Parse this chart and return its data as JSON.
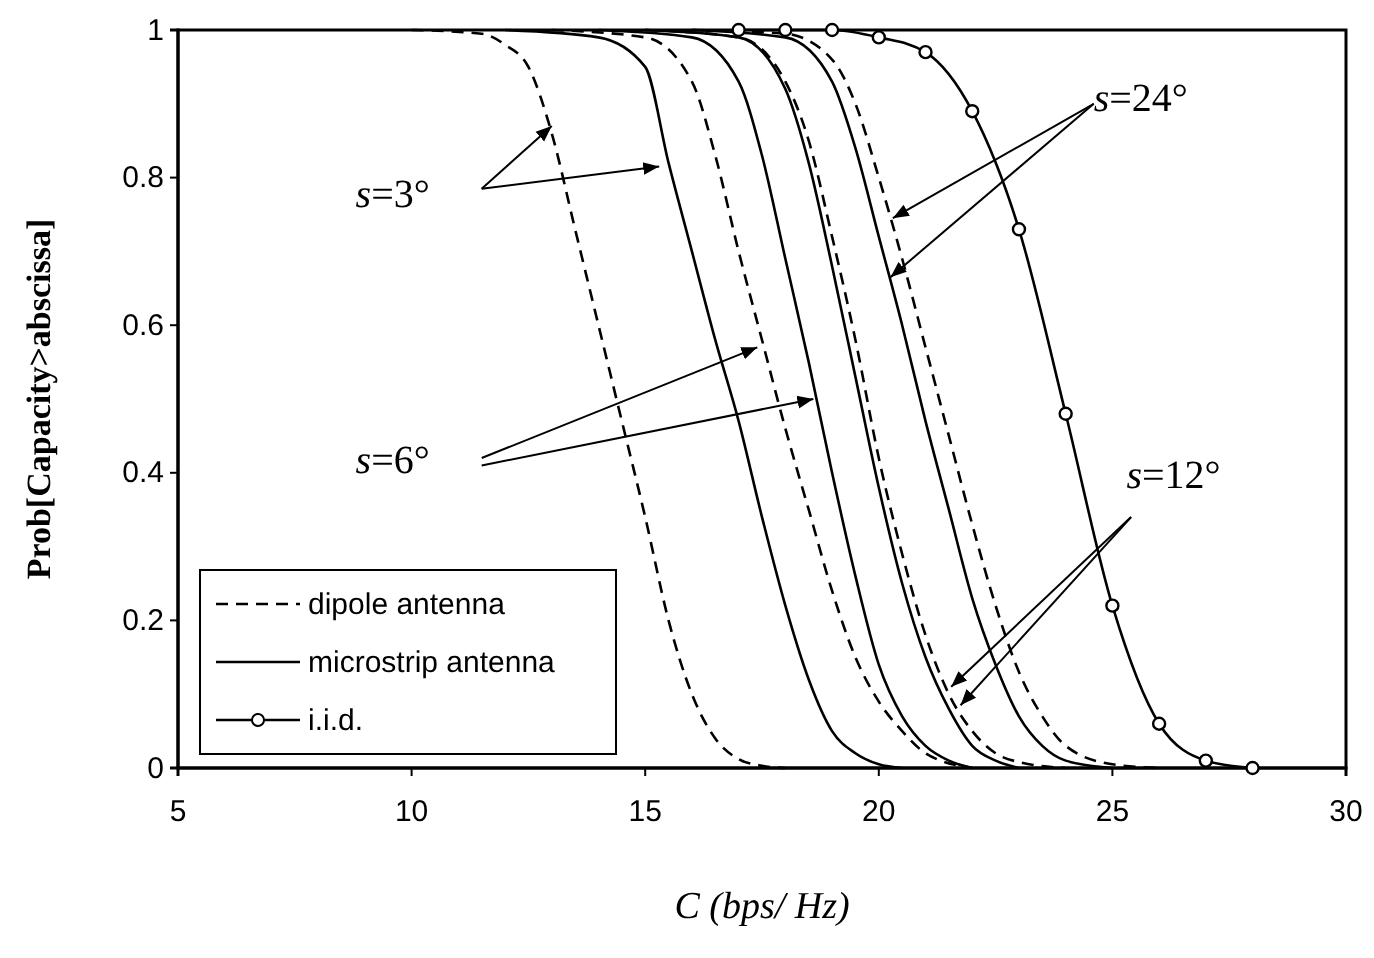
{
  "chart_data": {
    "type": "line",
    "xlabel": "C (bps/ Hz)",
    "ylabel": "Prob[Capacity>abscissa]",
    "xlim": [
      5,
      30
    ],
    "xticks": [
      5,
      10,
      15,
      20,
      25,
      30
    ],
    "ylim": [
      0,
      1
    ],
    "yticks": [
      0,
      {
        "value": 0.2,
        "label": "0.2"
      },
      {
        "value": 0.4,
        "label": "0.4"
      },
      {
        "value": 0.6,
        "label": "0.6"
      },
      {
        "value": 0.8,
        "label": "0.8"
      },
      1
    ],
    "grid": false,
    "legend": "bottom left",
    "marker": "none",
    "series": [
      {
        "name": "dipole antenna",
        "color": "#000000",
        "line_style": "dashed",
        "x": [
          10,
          11.5,
          12,
          12.5,
          13,
          13.5,
          14,
          14.5,
          15,
          15.5,
          16,
          16.5,
          17,
          17.5,
          18
        ],
        "values": [
          1,
          0.995,
          0.98,
          0.95,
          0.86,
          0.73,
          0.6,
          0.47,
          0.34,
          0.2,
          0.1,
          0.04,
          0.012,
          0.003,
          0
        ]
      },
      {
        "name": "microstrip antenna",
        "color": "#000000",
        "line_style": "solid",
        "x": [
          12,
          14,
          15,
          15.5,
          16,
          16.5,
          17,
          17.5,
          18,
          18.5,
          19,
          19.5,
          20,
          20.5
        ],
        "values": [
          1,
          0.99,
          0.95,
          0.82,
          0.7,
          0.58,
          0.47,
          0.34,
          0.22,
          0.12,
          0.05,
          0.02,
          0.005,
          0
        ]
      },
      {
        "color": "#000000",
        "line_style": "dashed",
        "x": [
          13,
          15,
          16,
          16.5,
          17,
          17.5,
          18,
          18.5,
          19,
          19.5,
          20,
          20.5,
          21,
          22
        ],
        "values": [
          1,
          0.99,
          0.93,
          0.83,
          0.7,
          0.58,
          0.46,
          0.35,
          0.24,
          0.15,
          0.09,
          0.05,
          0.02,
          0
        ]
      },
      {
        "color": "#000000",
        "line_style": "solid",
        "x": [
          14,
          16,
          17,
          17.5,
          18,
          18.5,
          19,
          19.5,
          20,
          20.5,
          21,
          21.5,
          22
        ],
        "values": [
          1,
          0.99,
          0.93,
          0.83,
          0.69,
          0.55,
          0.4,
          0.26,
          0.14,
          0.07,
          0.03,
          0.01,
          0
        ]
      },
      {
        "color": "#000000",
        "line_style": "solid",
        "x": [
          15,
          17,
          18,
          18.5,
          19,
          19.5,
          20,
          20.5,
          21,
          21.5,
          22,
          22.5,
          23
        ],
        "values": [
          1,
          0.99,
          0.92,
          0.82,
          0.68,
          0.53,
          0.38,
          0.25,
          0.15,
          0.08,
          0.03,
          0.01,
          0
        ]
      },
      {
        "color": "#000000",
        "line_style": "dashed",
        "x": [
          15,
          17,
          18,
          18.5,
          19,
          19.5,
          20,
          20.5,
          21,
          21.5,
          22,
          22.5,
          23,
          24
        ],
        "values": [
          1,
          0.99,
          0.93,
          0.85,
          0.72,
          0.58,
          0.42,
          0.29,
          0.18,
          0.1,
          0.05,
          0.02,
          0.008,
          0
        ]
      },
      {
        "color": "#000000",
        "line_style": "solid",
        "x": [
          16,
          18,
          19,
          19.5,
          20,
          20.5,
          21,
          21.5,
          22,
          22.5,
          23,
          23.5,
          24,
          25
        ],
        "values": [
          1,
          0.99,
          0.93,
          0.84,
          0.72,
          0.6,
          0.47,
          0.35,
          0.23,
          0.14,
          0.07,
          0.03,
          0.01,
          0
        ]
      },
      {
        "color": "#000000",
        "line_style": "dashed",
        "x": [
          16,
          18,
          19,
          19.5,
          20,
          20.5,
          21,
          21.5,
          22,
          22.5,
          23,
          23.5,
          24,
          25,
          26
        ],
        "values": [
          1,
          0.995,
          0.96,
          0.9,
          0.8,
          0.69,
          0.57,
          0.45,
          0.33,
          0.22,
          0.13,
          0.07,
          0.03,
          0.005,
          0
        ]
      },
      {
        "name": "i.i.d.",
        "color": "#000000",
        "line_style": "solid",
        "marker": "circle",
        "x": [
          17,
          18,
          19,
          20,
          21,
          22,
          23,
          24,
          25,
          26,
          27,
          28
        ],
        "values": [
          1,
          1,
          1,
          0.99,
          0.97,
          0.89,
          0.73,
          0.48,
          0.22,
          0.06,
          0.01,
          0
        ]
      }
    ],
    "annotations": [
      {
        "text": "s=3°",
        "x": 13.0,
        "y": 0.87
      },
      {
        "text": "s=6°",
        "x": 17.4,
        "y": 0.57
      },
      {
        "text": "s=24°",
        "x": 20.3,
        "y": 0.745
      },
      {
        "text": "s=12°",
        "x": 21.55,
        "y": 0.11
      }
    ]
  }
}
